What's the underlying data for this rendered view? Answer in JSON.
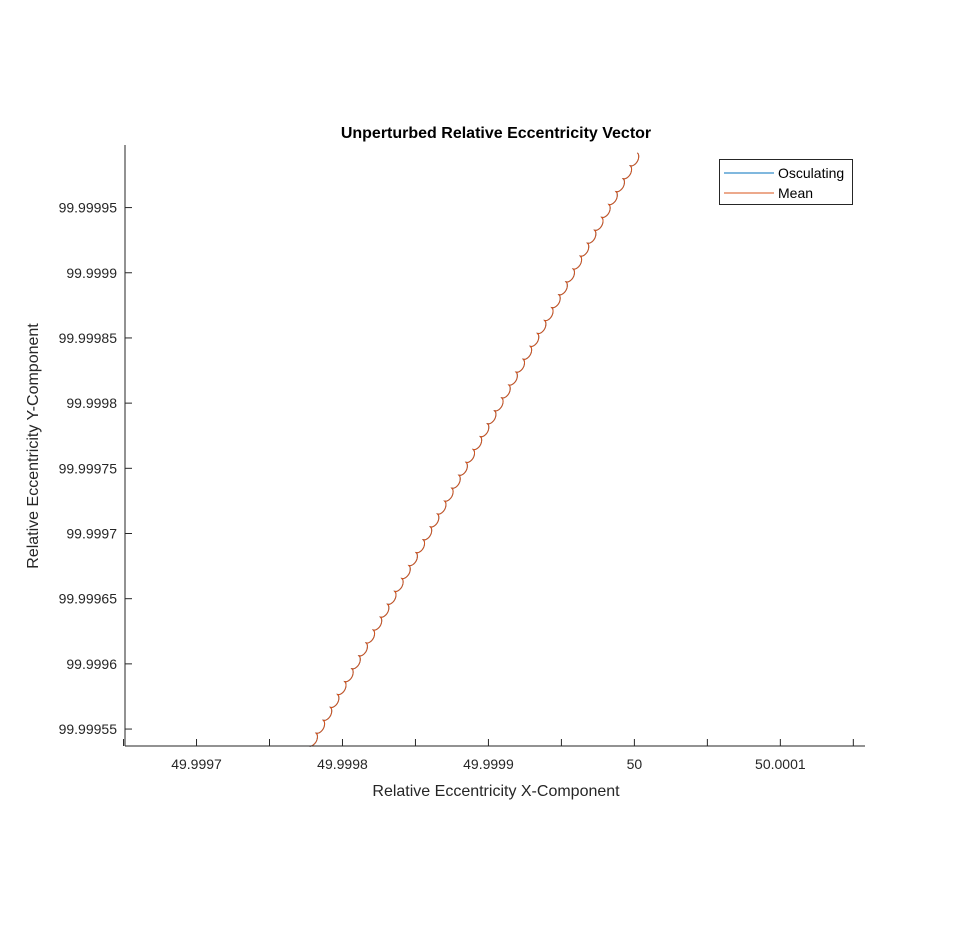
{
  "chart_data": {
    "type": "line",
    "title": "Unperturbed Relative Eccentricity Vector",
    "xlabel": "Relative Eccentricity X-Component",
    "ylabel": "Relative Eccentricity Y-Component",
    "xlim": [
      49.999651,
      50.000158
    ],
    "ylim": [
      99.999537,
      99.999998
    ],
    "x_ticks": [
      49.99965,
      49.9997,
      49.99975,
      49.9998,
      49.99985,
      49.9999,
      49.99995,
      50,
      50.00005,
      50.0001,
      50.00015
    ],
    "x_tick_labels": [
      "",
      "49.9997",
      "",
      "49.9998",
      "",
      "49.9999",
      "",
      "50",
      "",
      "50.0001",
      ""
    ],
    "y_ticks": [
      99.99955,
      99.9996,
      99.99965,
      99.9997,
      99.99975,
      99.9998,
      99.99985,
      99.9999,
      99.99995
    ],
    "y_tick_labels": [
      "99.99955",
      "99.9996",
      "99.99965",
      "99.9997",
      "99.99975",
      "99.9998",
      "99.99985",
      "99.9999",
      "99.99995"
    ],
    "legend_position": "top-right",
    "series": [
      {
        "name": "Osculating",
        "color": "#0072BD",
        "start": [
          49.999777,
          99.999537
        ],
        "end": [
          50.000002,
          99.999992
        ],
        "cycles": 46
      },
      {
        "name": "Mean",
        "color": "#D95319",
        "start": [
          49.999777,
          99.999537
        ],
        "end": [
          50.000002,
          99.999992
        ],
        "cycles": 46
      }
    ]
  }
}
